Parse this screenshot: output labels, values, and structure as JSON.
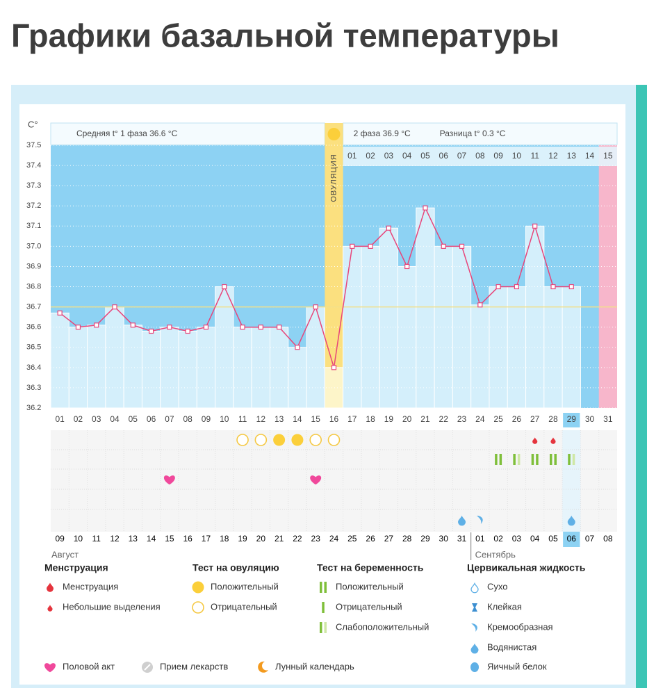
{
  "page": {
    "title": "Графики базальной температуры"
  },
  "chart_data": {
    "type": "line",
    "y_axis_label": "C°",
    "phase1_label": "Средняя t° 1 фаза 36.6 °C",
    "phase2_label": "2 фаза 36.9 °C",
    "difference_label": "Разница t° 0.3 °C",
    "ovulation_label": "ОВУЛЯЦИЯ",
    "ovulation_day": 16,
    "today_day": 29,
    "expected_period_day": 31,
    "categories": [
      "01",
      "02",
      "03",
      "04",
      "05",
      "06",
      "07",
      "08",
      "09",
      "10",
      "11",
      "12",
      "13",
      "14",
      "15",
      "16",
      "17",
      "18",
      "19",
      "20",
      "21",
      "22",
      "23",
      "24",
      "25",
      "26",
      "27",
      "28",
      "29",
      "30",
      "31"
    ],
    "values": [
      36.67,
      36.6,
      36.61,
      36.7,
      36.61,
      36.58,
      36.6,
      36.58,
      36.6,
      36.8,
      36.6,
      36.6,
      36.6,
      36.5,
      36.7,
      36.4,
      37.0,
      37.0,
      37.09,
      36.9,
      37.19,
      37.0,
      37.0,
      36.71,
      36.8,
      36.8,
      37.1,
      36.8,
      36.8,
      null,
      null
    ],
    "line_color": "#e8457a",
    "bar_color": "#d4effb",
    "phase2_days": [
      "01",
      "02",
      "03",
      "04",
      "05",
      "06",
      "07",
      "08",
      "09",
      "10",
      "11",
      "12",
      "13",
      "14",
      "15"
    ],
    "dates": [
      "09",
      "10",
      "11",
      "12",
      "13",
      "14",
      "15",
      "16",
      "17",
      "18",
      "19",
      "20",
      "21",
      "22",
      "23",
      "24",
      "25",
      "26",
      "27",
      "28",
      "29",
      "30",
      "31",
      "01",
      "02",
      "03",
      "04",
      "05",
      "06",
      "07",
      "08"
    ],
    "red_days": [
      5,
      6,
      12,
      13,
      19,
      20,
      26,
      27
    ],
    "red_color": "#e0245e",
    "months": [
      {
        "label": "Август",
        "start_day": 1
      },
      {
        "label": "Сентябрь",
        "start_day": 24
      }
    ],
    "cover_line": 36.7,
    "ylim": [
      36.2,
      37.5
    ],
    "yticks": [
      36.2,
      36.3,
      36.4,
      36.5,
      36.6,
      36.7,
      36.8,
      36.9,
      {
        "value": 37.0,
        "label": "37.0"
      },
      37.1,
      37.2,
      37.3,
      37.4,
      37.5
    ],
    "grid": true,
    "ovulation_tests": [
      {
        "day": 11,
        "kind": "negative"
      },
      {
        "day": 12,
        "kind": "negative"
      },
      {
        "day": 13,
        "kind": "positive"
      },
      {
        "day": 14,
        "kind": "positive"
      },
      {
        "day": 15,
        "kind": "negative"
      },
      {
        "day": 16,
        "kind": "negative"
      }
    ],
    "menstruation": [
      {
        "day": 27,
        "kind": "spotting"
      },
      {
        "day": 28,
        "kind": "spotting"
      }
    ],
    "pregnancy_tests": [
      {
        "day": 25,
        "kind": "positive"
      },
      {
        "day": 26,
        "kind": "weak"
      },
      {
        "day": 27,
        "kind": "positive"
      },
      {
        "day": 28,
        "kind": "positive"
      },
      {
        "day": 29,
        "kind": "weak"
      }
    ],
    "intercourse": [
      7,
      15
    ],
    "cervical_fluid": [
      {
        "day": 23,
        "kind": "watery"
      },
      {
        "day": 24,
        "kind": "creamy"
      },
      {
        "day": 29,
        "kind": "watery"
      }
    ]
  },
  "legend": {
    "menstruation": {
      "title": "Менструация",
      "items": [
        "Менструация",
        "Небольшие выделения"
      ]
    },
    "ovulation_test": {
      "title": "Тест на овуляцию",
      "items": [
        "Положительный",
        "Отрицательный"
      ]
    },
    "pregnancy_test": {
      "title": "Тест на беременность",
      "items": [
        "Положительный",
        "Отрицательный",
        "Слабоположительный"
      ]
    },
    "cervical_fluid": {
      "title": "Цервикальная жидкость",
      "items": [
        "Сухо",
        "Клейкая",
        "Кремообразная",
        "Водянистая",
        "Яичный белок"
      ]
    },
    "other": [
      "Половой акт",
      "Прием лекарств",
      "Лунный календарь"
    ]
  }
}
